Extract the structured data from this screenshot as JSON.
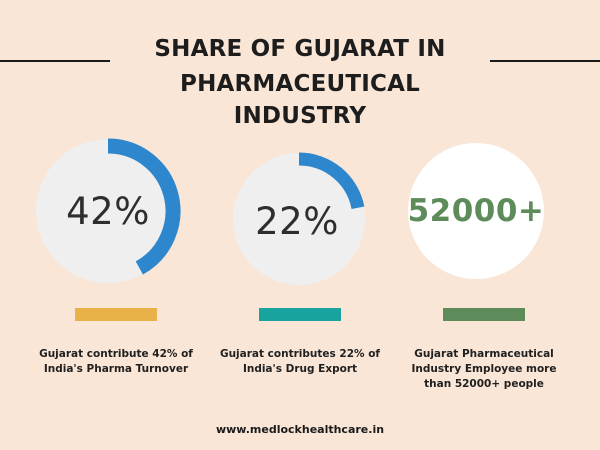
{
  "header": {
    "title_line1": "SHARE OF GUJARAT IN",
    "title_line2": "PHARMACEUTICAL INDUSTRY"
  },
  "stats": [
    {
      "value_label": "42%",
      "caption_line1": "Gujarat contribute 42% of",
      "caption_line2": "India's Pharma Turnover",
      "bar_color": "#e8b248"
    },
    {
      "value_label": "22%",
      "caption_line1": "Gujarat contributes 22% of",
      "caption_line2": "India's Drug Export",
      "bar_color": "#18a39f"
    },
    {
      "value_label": "52000+",
      "caption_line1": "Gujarat Pharmaceutical",
      "caption_line2": "Industry Employee more",
      "caption_line3": "than 52000+ people",
      "bar_color": "#5e8b5a"
    }
  ],
  "footer": {
    "website": "www.medlockhealthcare.in"
  },
  "colors": {
    "background": "#fae6d6",
    "ring_track": "#efefef",
    "ring_fill": "#2e86cc",
    "count_text": "#5e8b5a"
  },
  "chart_data": {
    "type": "pie",
    "categories": [
      "India's Pharma Turnover",
      "India's Drug Export"
    ],
    "values": [
      42,
      22
    ],
    "unit": "%",
    "extra_stat": {
      "label": "Gujarat Pharmaceutical Industry Employee",
      "value": 52000,
      "display": "52000+"
    }
  }
}
